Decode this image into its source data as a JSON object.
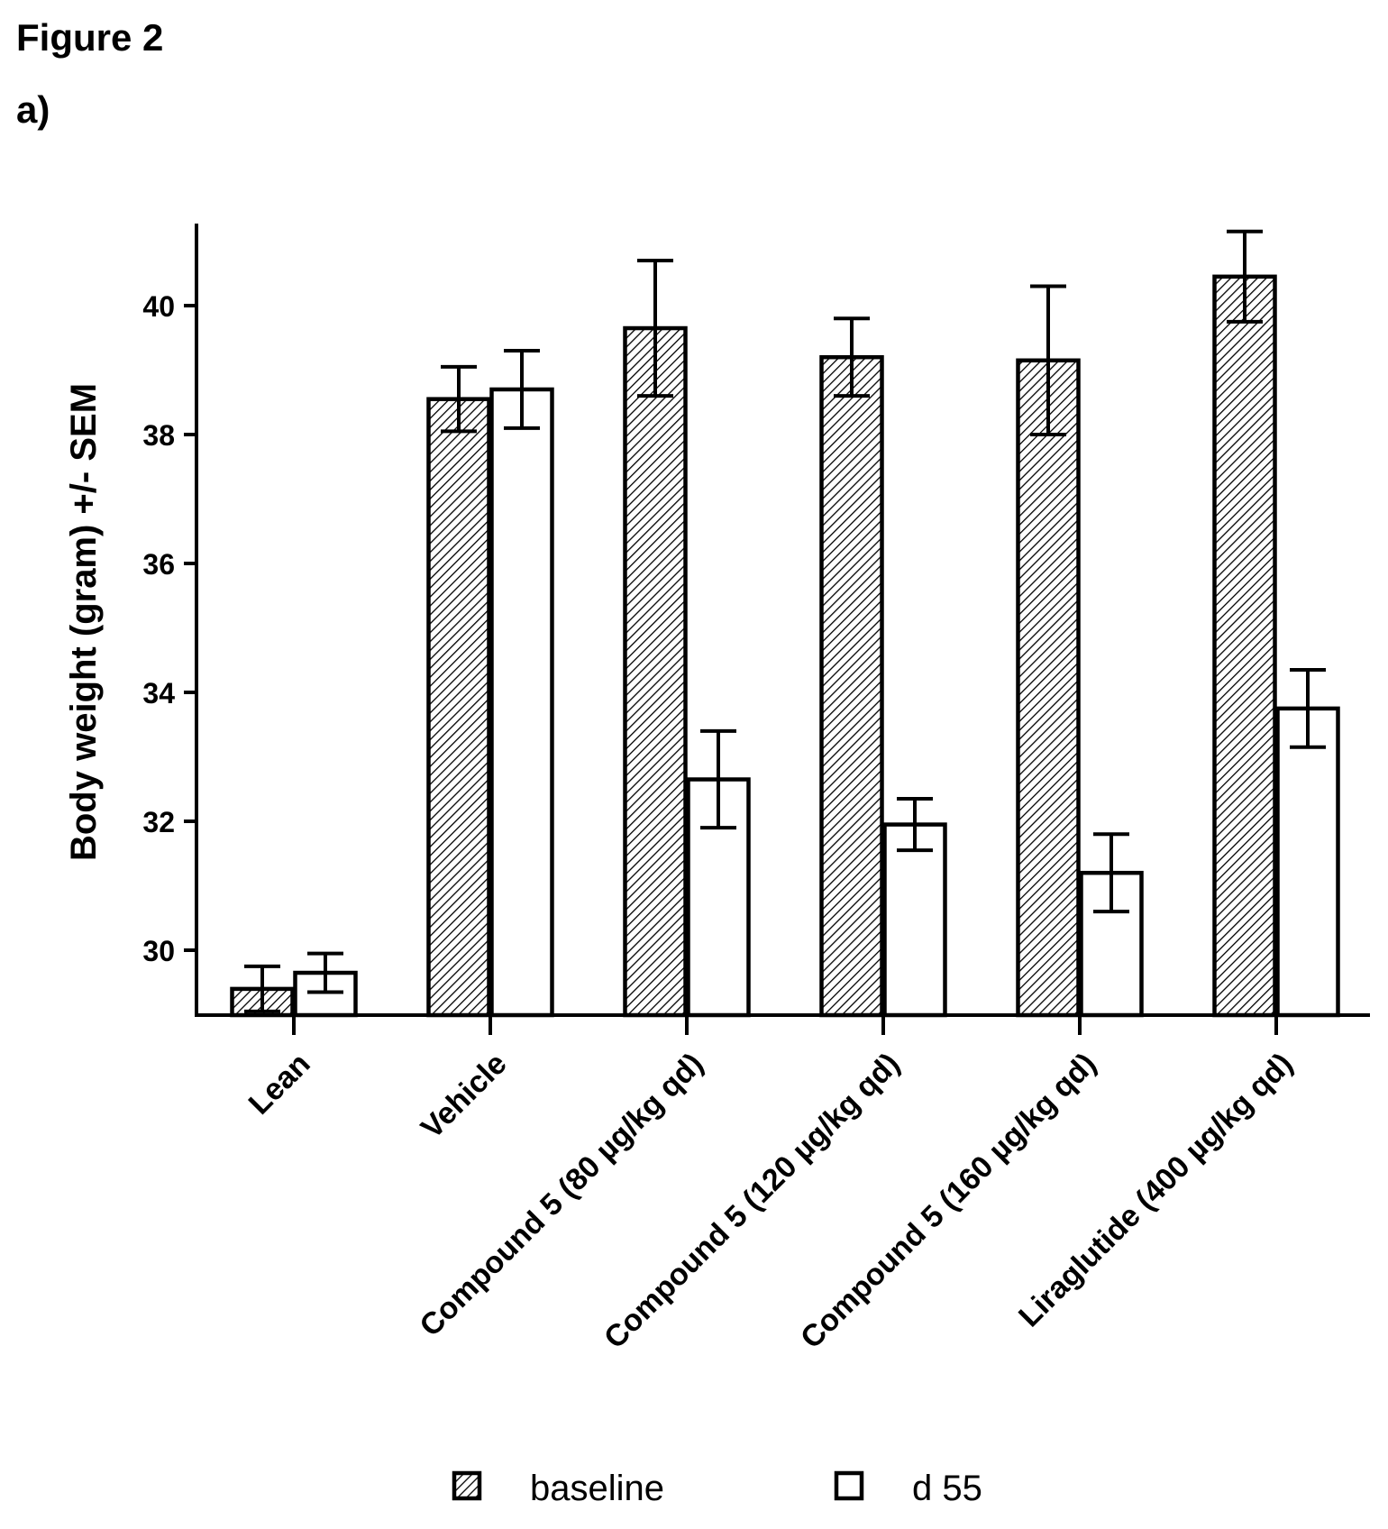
{
  "figure_label": "Figure 2",
  "panel_label": "a)",
  "chart_data": {
    "type": "bar",
    "title": "",
    "xlabel": "",
    "ylabel": "Body weight (gram) +/- SEM",
    "ylim": [
      29.0,
      41.25
    ],
    "yticks": [
      30,
      32,
      34,
      36,
      38,
      40
    ],
    "categories": [
      "Lean",
      "Vehicle",
      "Compound 5 (80 µg/kg qd)",
      "Compound 5 (120 µg/kg qd)",
      "Compound 5 (160 µg/kg qd)",
      "Liraglutide (400 µg/kg qd)"
    ],
    "series": [
      {
        "name": "baseline",
        "pattern": "hatched",
        "values": [
          29.4,
          38.55,
          39.65,
          39.2,
          39.15,
          40.45
        ],
        "err": [
          0.35,
          0.5,
          1.05,
          0.6,
          1.15,
          0.7
        ]
      },
      {
        "name": "d 55",
        "pattern": "open",
        "values": [
          29.65,
          38.7,
          32.65,
          31.95,
          31.2,
          33.75
        ],
        "err": [
          0.3,
          0.6,
          0.75,
          0.4,
          0.6,
          0.6
        ]
      }
    ],
    "legend_position": "bottom",
    "grid": false
  }
}
